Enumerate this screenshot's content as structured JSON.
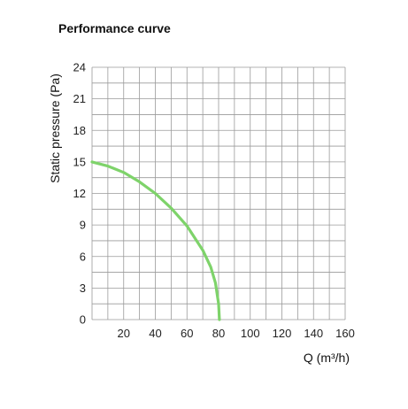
{
  "chart_data": {
    "type": "line",
    "title": "Performance curve",
    "xlabel": "Q (m³/h)",
    "ylabel": "Static pressure (Pa)",
    "xlim": [
      0,
      160
    ],
    "ylim": [
      0,
      24
    ],
    "x_ticks": [
      20,
      40,
      60,
      80,
      100,
      120,
      140,
      160
    ],
    "y_ticks": [
      0,
      3,
      6,
      9,
      12,
      15,
      18,
      21,
      24
    ],
    "x_minor_step": 10,
    "y_minor_step": 1.5,
    "grid": true,
    "series": [
      {
        "color": "#7ed36a",
        "points": [
          [
            0,
            15
          ],
          [
            10,
            14.6
          ],
          [
            20,
            14
          ],
          [
            30,
            13.1
          ],
          [
            40,
            12
          ],
          [
            50,
            10.6
          ],
          [
            60,
            8.9
          ],
          [
            70,
            6.6
          ],
          [
            75,
            5
          ],
          [
            78,
            3.5
          ],
          [
            80,
            1.5
          ],
          [
            80.5,
            0
          ]
        ]
      }
    ]
  }
}
